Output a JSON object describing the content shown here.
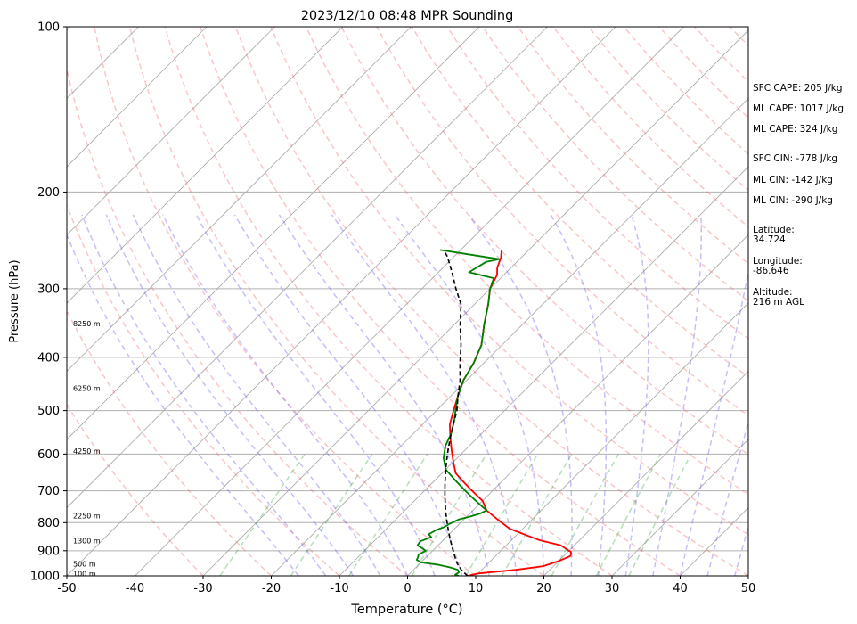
{
  "chart_data": {
    "type": "line",
    "title": "2023/12/10 08:48 MPR Sounding",
    "xlabel": "Temperature (°C)",
    "ylabel": "Pressure (hPa)",
    "xlim": [
      -50,
      50
    ],
    "ylim": [
      1000,
      100
    ],
    "y_scale": "log",
    "x_ticks": [
      -50,
      -40,
      -30,
      -20,
      -10,
      0,
      10,
      20,
      30,
      40,
      50
    ],
    "y_ticks": [
      100,
      200,
      300,
      400,
      500,
      600,
      700,
      800,
      900,
      1000
    ],
    "grid": true,
    "height_labels": [
      {
        "text": "100 m",
        "p": 990
      },
      {
        "text": "500 m",
        "p": 950
      },
      {
        "text": "1300 m",
        "p": 863
      },
      {
        "text": "2250 m",
        "p": 777
      },
      {
        "text": "4250 m",
        "p": 592
      },
      {
        "text": "6250 m",
        "p": 455
      },
      {
        "text": "8250 m",
        "p": 347
      }
    ],
    "series": [
      {
        "color": "#ff0000",
        "points": [
          [
            8.8,
            1000
          ],
          [
            10,
            990
          ],
          [
            15,
            975
          ],
          [
            18.5,
            960
          ],
          [
            20,
            940
          ],
          [
            21,
            920
          ],
          [
            20.5,
            905
          ],
          [
            18,
            880
          ],
          [
            14,
            860
          ],
          [
            11,
            840
          ],
          [
            8,
            820
          ],
          [
            5,
            790
          ],
          [
            2,
            760
          ],
          [
            0,
            730
          ],
          [
            -2,
            710
          ],
          [
            -4,
            690
          ],
          [
            -6,
            670
          ],
          [
            -8,
            650
          ],
          [
            -10,
            620
          ],
          [
            -12,
            590
          ],
          [
            -14,
            560
          ],
          [
            -16,
            530
          ],
          [
            -17.5,
            500
          ],
          [
            -19,
            470
          ],
          [
            -20.5,
            440
          ],
          [
            -21.5,
            410
          ],
          [
            -23,
            380
          ],
          [
            -25.5,
            350
          ],
          [
            -28,
            320
          ],
          [
            -30,
            300
          ],
          [
            -31,
            283
          ],
          [
            -32,
            275
          ],
          [
            -33,
            263
          ],
          [
            -34,
            255
          ]
        ]
      },
      {
        "color": "#008000",
        "points": [
          [
            7.5,
            1000
          ],
          [
            6.8,
            995
          ],
          [
            7,
            985
          ],
          [
            6.5,
            975
          ],
          [
            5,
            965
          ],
          [
            3,
            955
          ],
          [
            0,
            945
          ],
          [
            -1,
            935
          ],
          [
            -1.2,
            925
          ],
          [
            -1.5,
            915
          ],
          [
            -1,
            900
          ],
          [
            -2,
            890
          ],
          [
            -3,
            880
          ],
          [
            -3.2,
            865
          ],
          [
            -2.2,
            850
          ],
          [
            -3,
            840
          ],
          [
            -2.5,
            825
          ],
          [
            -1.8,
            815
          ],
          [
            -1.5,
            805
          ],
          [
            -0.8,
            790
          ],
          [
            0.5,
            780
          ],
          [
            1.5,
            770
          ],
          [
            2,
            760
          ],
          [
            0,
            740
          ],
          [
            -2,
            720
          ],
          [
            -4,
            700
          ],
          [
            -7,
            670
          ],
          [
            -10,
            640
          ],
          [
            -12,
            610
          ],
          [
            -13.5,
            580
          ],
          [
            -14.5,
            550
          ],
          [
            -16,
            520
          ],
          [
            -17.5,
            495
          ],
          [
            -19,
            470
          ],
          [
            -20.5,
            440
          ],
          [
            -21.5,
            410
          ],
          [
            -23,
            380
          ],
          [
            -25.5,
            350
          ],
          [
            -28,
            320
          ],
          [
            -30,
            300
          ],
          [
            -31,
            287
          ],
          [
            -35.5,
            280
          ],
          [
            -34.5,
            268
          ],
          [
            -33,
            265
          ],
          [
            -43,
            255
          ]
        ]
      },
      {
        "color": "#000000",
        "dashed": true,
        "points": [
          [
            8.8,
            1000
          ],
          [
            7,
            975
          ],
          [
            5.5,
            950
          ],
          [
            4,
            920
          ],
          [
            2.5,
            890
          ],
          [
            1,
            860
          ],
          [
            -0.5,
            830
          ],
          [
            -2,
            800
          ],
          [
            -3.5,
            770
          ],
          [
            -5,
            740
          ],
          [
            -6.5,
            710
          ],
          [
            -8,
            680
          ],
          [
            -9.5,
            650
          ],
          [
            -11,
            620
          ],
          [
            -12.5,
            590
          ],
          [
            -14,
            560
          ],
          [
            -15.5,
            530
          ],
          [
            -17,
            500
          ],
          [
            -19,
            470
          ],
          [
            -21,
            440
          ],
          [
            -23.5,
            410
          ],
          [
            -26,
            380
          ],
          [
            -29,
            350
          ],
          [
            -32,
            320
          ],
          [
            -35,
            300
          ],
          [
            -38,
            280
          ],
          [
            -41,
            262
          ],
          [
            -42.5,
            255
          ]
        ]
      }
    ]
  },
  "indices": {
    "sfc_cape": "SFC CAPE: 205 J/kg",
    "ml_cape_1": "ML CAPE: 1017 J/kg",
    "ml_cape_2": "ML CAPE: 324 J/kg",
    "sfc_cin": "SFC CIN: -778 J/kg",
    "ml_cin_1": "ML CIN: -142 J/kg",
    "ml_cin_2": "ML CIN: -290 J/kg"
  },
  "location": {
    "latitude_label": "Latitude:",
    "latitude": "34.724",
    "longitude_label": "Longitude:",
    "longitude": "-86.646",
    "altitude_label": "Altitude:",
    "altitude": "216 m AGL"
  }
}
